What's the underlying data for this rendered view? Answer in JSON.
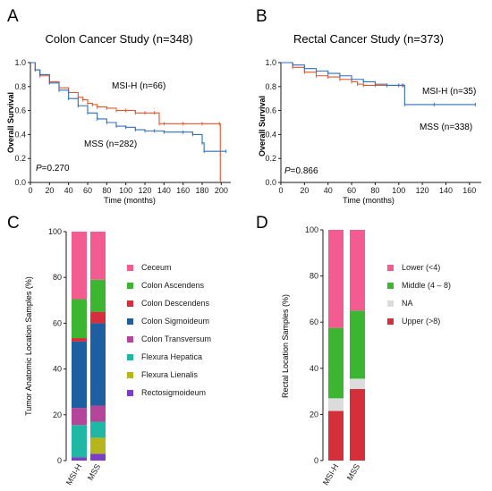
{
  "panels": {
    "A": "A",
    "B": "B",
    "C": "C",
    "D": "D"
  },
  "colors": {
    "msi_h": "#e8542a",
    "mss": "#2e6fbf",
    "axis": "#1a1a1a"
  },
  "chart_data": [
    {
      "panel": "A",
      "type": "line",
      "title": "Colon Cancer Study (n=348)",
      "xlabel": "Time (months)",
      "ylabel": "Overall Survival",
      "xlim": [
        0,
        210
      ],
      "ylim": [
        0,
        1
      ],
      "xticks": [
        "0",
        "20",
        "40",
        "60",
        "80",
        "100",
        "120",
        "140",
        "160",
        "180",
        "200"
      ],
      "yticks": [
        "0.0",
        "0.2",
        "0.4",
        "0.6",
        "0.8",
        "1.0"
      ],
      "annotations": {
        "pvalue_prefix": "P",
        "pvalue_value": "=0.270",
        "msi_label": "MSI-H (n=66)",
        "mss_label": "MSS (n=282)"
      },
      "series": [
        {
          "name": "MSI-H",
          "x": [
            0,
            5,
            10,
            20,
            30,
            40,
            50,
            55,
            60,
            65,
            70,
            80,
            90,
            100,
            110,
            120,
            130,
            135,
            140,
            160,
            180,
            198,
            199
          ],
          "y": [
            1.0,
            0.94,
            0.89,
            0.84,
            0.79,
            0.75,
            0.71,
            0.69,
            0.66,
            0.65,
            0.63,
            0.62,
            0.6,
            0.6,
            0.58,
            0.58,
            0.58,
            0.49,
            0.49,
            0.49,
            0.49,
            0.49,
            0.02
          ]
        },
        {
          "name": "MSS",
          "x": [
            0,
            5,
            10,
            20,
            30,
            40,
            50,
            60,
            70,
            80,
            90,
            100,
            110,
            120,
            130,
            140,
            160,
            170,
            180,
            182,
            205
          ],
          "y": [
            1.0,
            0.94,
            0.9,
            0.83,
            0.77,
            0.7,
            0.64,
            0.58,
            0.53,
            0.5,
            0.47,
            0.46,
            0.44,
            0.43,
            0.43,
            0.42,
            0.42,
            0.4,
            0.33,
            0.26,
            0.26
          ]
        }
      ]
    },
    {
      "panel": "B",
      "type": "line",
      "title": "Rectal Cancer Study (n=373)",
      "xlabel": "Time (months)",
      "ylabel": "Overall Survival",
      "xlim": [
        0,
        170
      ],
      "ylim": [
        0,
        1
      ],
      "xticks": [
        "0",
        "20",
        "40",
        "60",
        "80",
        "100",
        "120",
        "140",
        "160"
      ],
      "yticks": [
        "0.0",
        "0.2",
        "0.4",
        "0.6",
        "0.8",
        "1.0"
      ],
      "annotations": {
        "pvalue_prefix": "P",
        "pvalue_value": "=0.866",
        "msi_label": "MSI-H (n=35)",
        "mss_label": "MSS (n=338)"
      },
      "series": [
        {
          "name": "MSI-H",
          "x": [
            0,
            10,
            20,
            30,
            40,
            50,
            60,
            65,
            70,
            80,
            90,
            100,
            104
          ],
          "y": [
            1.0,
            0.96,
            0.92,
            0.89,
            0.88,
            0.86,
            0.84,
            0.82,
            0.81,
            0.81,
            0.81,
            0.81,
            0.81
          ]
        },
        {
          "name": "MSS",
          "x": [
            0,
            10,
            20,
            30,
            40,
            50,
            60,
            70,
            80,
            90,
            100,
            103,
            105,
            130,
            165
          ],
          "y": [
            1.0,
            0.98,
            0.95,
            0.93,
            0.91,
            0.89,
            0.86,
            0.84,
            0.82,
            0.81,
            0.81,
            0.81,
            0.65,
            0.65,
            0.65
          ]
        }
      ]
    },
    {
      "panel": "C",
      "type": "bar",
      "stacked": true,
      "ylabel": "Tumor Anatomic Location Samples (%)",
      "ylim": [
        0,
        100
      ],
      "yticks": [
        "0",
        "20",
        "40",
        "60",
        "80",
        "100"
      ],
      "categories": [
        "MSI-H",
        "MSS"
      ],
      "legend": "right",
      "series": [
        {
          "name": "Rectosigmoideum",
          "color": "#7b3fc4",
          "values": [
            1.5,
            3
          ]
        },
        {
          "name": "Flexura Lienalis",
          "color": "#b5b51c",
          "values": [
            0,
            7
          ]
        },
        {
          "name": "Flexura Hepatica",
          "color": "#1fb8a4",
          "values": [
            14,
            7
          ]
        },
        {
          "name": "Colon  Transversum",
          "color": "#b5459b",
          "values": [
            7.5,
            7
          ]
        },
        {
          "name": "Colon Sigmoideum",
          "color": "#1d5fa0",
          "values": [
            29,
            36
          ]
        },
        {
          "name": "Colon Descendens",
          "color": "#d42f3a",
          "values": [
            1.5,
            5
          ]
        },
        {
          "name": "Colon Ascendens",
          "color": "#3cb530",
          "values": [
            17,
            14
          ]
        },
        {
          "name": "Ceceum",
          "color": "#f25c91",
          "values": [
            29.5,
            21
          ]
        }
      ],
      "legend_order": [
        "Ceceum",
        "Colon Ascendens",
        "Colon Descendens",
        "Colon Sigmoideum",
        "Colon  Transversum",
        "Flexura Hepatica",
        "Flexura Lienalis",
        "Rectosigmoideum"
      ]
    },
    {
      "panel": "D",
      "type": "bar",
      "stacked": true,
      "ylabel": "Rectal Location Samples (%)",
      "ylim": [
        0,
        100
      ],
      "yticks": [
        "0",
        "20",
        "40",
        "60",
        "80",
        "100"
      ],
      "categories": [
        "MSI-H",
        "MSS"
      ],
      "legend": "right",
      "series": [
        {
          "name": "Upper (>8)",
          "color": "#d42f3a",
          "values": [
            21.5,
            31
          ]
        },
        {
          "name": "NA",
          "color": "#dcdcdc",
          "values": [
            5.5,
            4.5
          ]
        },
        {
          "name": "Middle (4 – 8)",
          "color": "#3cb530",
          "values": [
            30.5,
            29.5
          ]
        },
        {
          "name": "Lower (<4)",
          "color": "#f25c91",
          "values": [
            42.5,
            35
          ]
        }
      ],
      "legend_order": [
        "Lower (<4)",
        "Middle (4 – 8)",
        "NA",
        "Upper (>8)"
      ]
    }
  ]
}
